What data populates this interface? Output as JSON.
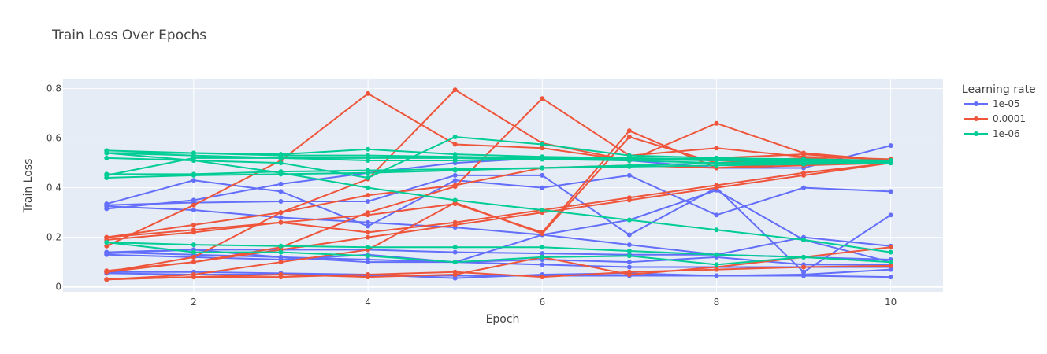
{
  "chart_data": {
    "type": "line",
    "title": "Train Loss Over Epochs",
    "xlabel": "Epoch",
    "ylabel": "Train Loss",
    "xlim": [
      0.5,
      10.6
    ],
    "ylim": [
      -0.02,
      0.84
    ],
    "xticks": [
      2,
      4,
      6,
      8,
      10
    ],
    "yticks": [
      0,
      0.2,
      0.4,
      0.6,
      0.8
    ],
    "grid": true,
    "legend_title": "Learning rate",
    "legend_position": "right",
    "x": [
      1,
      2,
      3,
      4,
      5,
      6,
      7,
      8,
      9,
      10
    ],
    "series": [
      {
        "name": "1e-05",
        "color": "#636efa",
        "runs": [
          [
            0.335,
            0.43,
            0.385,
            0.245,
            0.43,
            0.4,
            0.45,
            0.29,
            0.4,
            0.385
          ],
          [
            0.315,
            0.35,
            0.415,
            0.46,
            0.5,
            0.52,
            0.51,
            0.48,
            0.48,
            0.57
          ],
          [
            0.33,
            0.34,
            0.345,
            0.345,
            0.45,
            0.45,
            0.21,
            0.4,
            0.06,
            0.29
          ],
          [
            0.325,
            0.31,
            0.28,
            0.26,
            0.24,
            0.21,
            0.27,
            0.39,
            0.19,
            0.1
          ],
          [
            0.13,
            0.12,
            0.11,
            0.13,
            0.1,
            0.21,
            0.17,
            0.13,
            0.2,
            0.165
          ],
          [
            0.135,
            0.15,
            0.12,
            0.1,
            0.1,
            0.11,
            0.1,
            0.12,
            0.09,
            0.09
          ],
          [
            0.06,
            0.06,
            0.055,
            0.05,
            0.035,
            0.05,
            0.055,
            0.045,
            0.045,
            0.04
          ],
          [
            0.055,
            0.05,
            0.05,
            0.045,
            0.045,
            0.045,
            0.045,
            0.045,
            0.05,
            0.07
          ],
          [
            0.14,
            0.13,
            0.12,
            0.11,
            0.1,
            0.09,
            0.08,
            0.08,
            0.08,
            0.08
          ],
          [
            0.14,
            0.15,
            0.15,
            0.15,
            0.14,
            0.135,
            0.13,
            0.13,
            0.12,
            0.11
          ]
        ]
      },
      {
        "name": "0.0001",
        "color": "#ef553b",
        "runs": [
          [
            0.165,
            0.33,
            0.51,
            0.78,
            0.575,
            0.56,
            0.51,
            0.52,
            0.535,
            0.51
          ],
          [
            0.06,
            0.12,
            0.3,
            0.435,
            0.795,
            0.58,
            0.51,
            0.66,
            0.54,
            0.51
          ],
          [
            0.065,
            0.1,
            0.16,
            0.3,
            0.405,
            0.76,
            0.53,
            0.56,
            0.525,
            0.515
          ],
          [
            0.03,
            0.05,
            0.1,
            0.15,
            0.34,
            0.215,
            0.605,
            0.5,
            0.52,
            0.505
          ],
          [
            0.2,
            0.25,
            0.3,
            0.37,
            0.41,
            0.48,
            0.49,
            0.48,
            0.49,
            0.5
          ],
          [
            0.2,
            0.23,
            0.26,
            0.29,
            0.335,
            0.22,
            0.63,
            0.48,
            0.5,
            0.505
          ],
          [
            0.19,
            0.22,
            0.26,
            0.22,
            0.26,
            0.31,
            0.36,
            0.41,
            0.46,
            0.5
          ],
          [
            0.06,
            0.1,
            0.15,
            0.2,
            0.25,
            0.3,
            0.35,
            0.4,
            0.45,
            0.5
          ],
          [
            0.03,
            0.04,
            0.05,
            0.04,
            0.05,
            0.12,
            0.05,
            0.08,
            0.12,
            0.16
          ],
          [
            0.03,
            0.04,
            0.04,
            0.05,
            0.06,
            0.04,
            0.06,
            0.07,
            0.08,
            0.085
          ]
        ]
      },
      {
        "name": "1e-06",
        "color": "#00cc96",
        "runs": [
          [
            0.55,
            0.54,
            0.535,
            0.555,
            0.535,
            0.525,
            0.52,
            0.515,
            0.51,
            0.51
          ],
          [
            0.54,
            0.54,
            0.53,
            0.53,
            0.525,
            0.52,
            0.515,
            0.51,
            0.505,
            0.5
          ],
          [
            0.54,
            0.53,
            0.52,
            0.51,
            0.51,
            0.515,
            0.51,
            0.5,
            0.5,
            0.505
          ],
          [
            0.45,
            0.52,
            0.52,
            0.52,
            0.52,
            0.515,
            0.515,
            0.515,
            0.51,
            0.51
          ],
          [
            0.44,
            0.45,
            0.455,
            0.46,
            0.47,
            0.48,
            0.49,
            0.5,
            0.505,
            0.51
          ],
          [
            0.455,
            0.455,
            0.465,
            0.47,
            0.475,
            0.48,
            0.485,
            0.49,
            0.495,
            0.5
          ],
          [
            0.52,
            0.51,
            0.5,
            0.44,
            0.605,
            0.575,
            0.53,
            0.52,
            0.515,
            0.51
          ],
          [
            0.54,
            0.51,
            0.46,
            0.4,
            0.35,
            0.31,
            0.27,
            0.23,
            0.19,
            0.14
          ],
          [
            0.18,
            0.17,
            0.165,
            0.16,
            0.16,
            0.16,
            0.145,
            0.13,
            0.12,
            0.1
          ],
          [
            0.18,
            0.14,
            0.14,
            0.125,
            0.1,
            0.12,
            0.125,
            0.09,
            0.12,
            0.1
          ]
        ]
      }
    ]
  }
}
